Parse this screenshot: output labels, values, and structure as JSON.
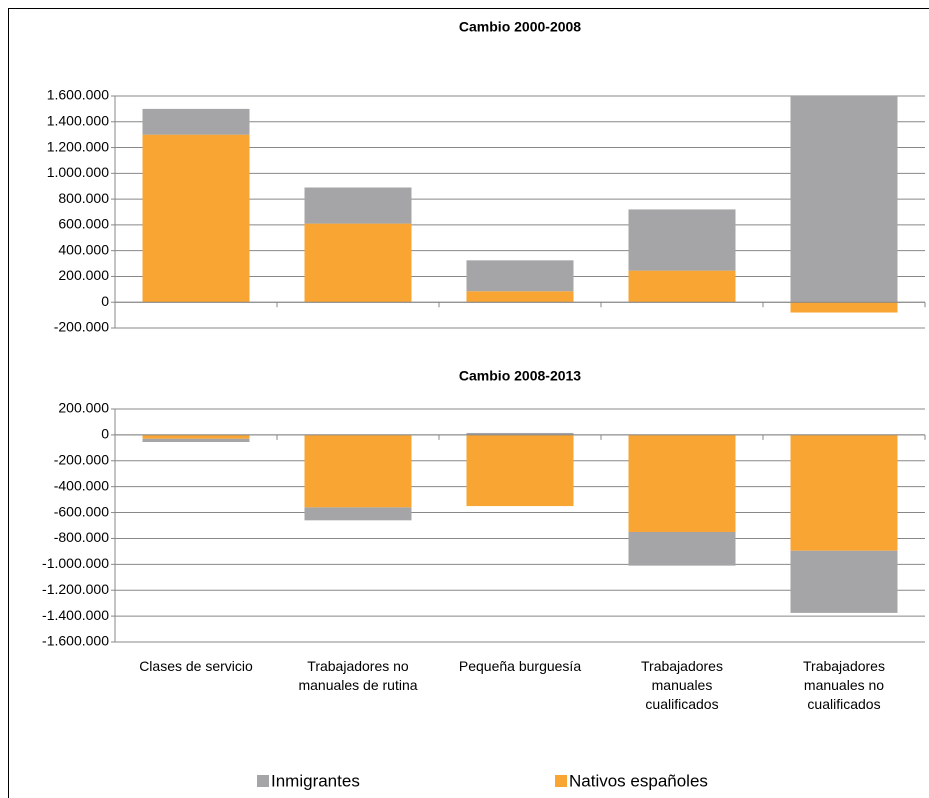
{
  "chart_data": [
    {
      "type": "bar",
      "stacked": true,
      "title": "Cambio 2000-2008",
      "ylim": [
        -200000,
        1600000
      ],
      "yticks": [
        {
          "value": -200000,
          "label": "-200.000"
        },
        0,
        {
          "value": 200000,
          "label": "200.000"
        },
        {
          "value": 400000,
          "label": "400.000"
        },
        {
          "value": 600000,
          "label": "600.000"
        },
        {
          "value": 800000,
          "label": "800.000"
        },
        {
          "value": 1000000,
          "label": "1.000.000"
        },
        {
          "value": 1200000,
          "label": "1.200.000"
        },
        {
          "value": 1400000,
          "label": "1.400.000"
        },
        {
          "value": 1600000,
          "label": "1.600.000"
        }
      ],
      "grid": true,
      "series": [
        {
          "color": "#f9a533",
          "values": [
            1300000,
            610000,
            85000,
            245000,
            -80000
          ]
        },
        {
          "color": "#a5a5a7",
          "values": [
            200000,
            280000,
            240000,
            475000,
            1600000
          ]
        }
      ]
    },
    {
      "type": "bar",
      "stacked": true,
      "title": "Cambio 2008-2013",
      "categories": [
        "Clases de servicio",
        "Trabajadores no\nmanuales de rutina",
        "Pequeña burguesía",
        "Trabajadores\nmanuales\ncualificados",
        "Trabajadores\nmanuales no\ncualificados"
      ],
      "ylim": [
        -1600000,
        200000
      ],
      "yticks": [
        {
          "value": -1600000,
          "label": "-1.600.000"
        },
        {
          "value": -1400000,
          "label": "-1.400.000"
        },
        {
          "value": -1200000,
          "label": "-1.200.000"
        },
        {
          "value": -1000000,
          "label": "-1.000.000"
        },
        {
          "value": -800000,
          "label": "-800.000"
        },
        {
          "value": -600000,
          "label": "-600.000"
        },
        {
          "value": -400000,
          "label": "-400.000"
        },
        {
          "value": -200000,
          "label": "-200.000"
        },
        0,
        {
          "value": 200000,
          "label": "200.000"
        }
      ],
      "grid": true,
      "legend": "bottom",
      "series": [
        {
          "name": "Nativos españoles",
          "color": "#f9a533",
          "values": [
            -30000,
            -560000,
            -550000,
            -750000,
            -895000
          ]
        },
        {
          "name": "Inmigrantes",
          "color": "#a5a5a7",
          "values": [
            -25000,
            -100000,
            15000,
            -260000,
            -480000
          ]
        }
      ]
    }
  ]
}
